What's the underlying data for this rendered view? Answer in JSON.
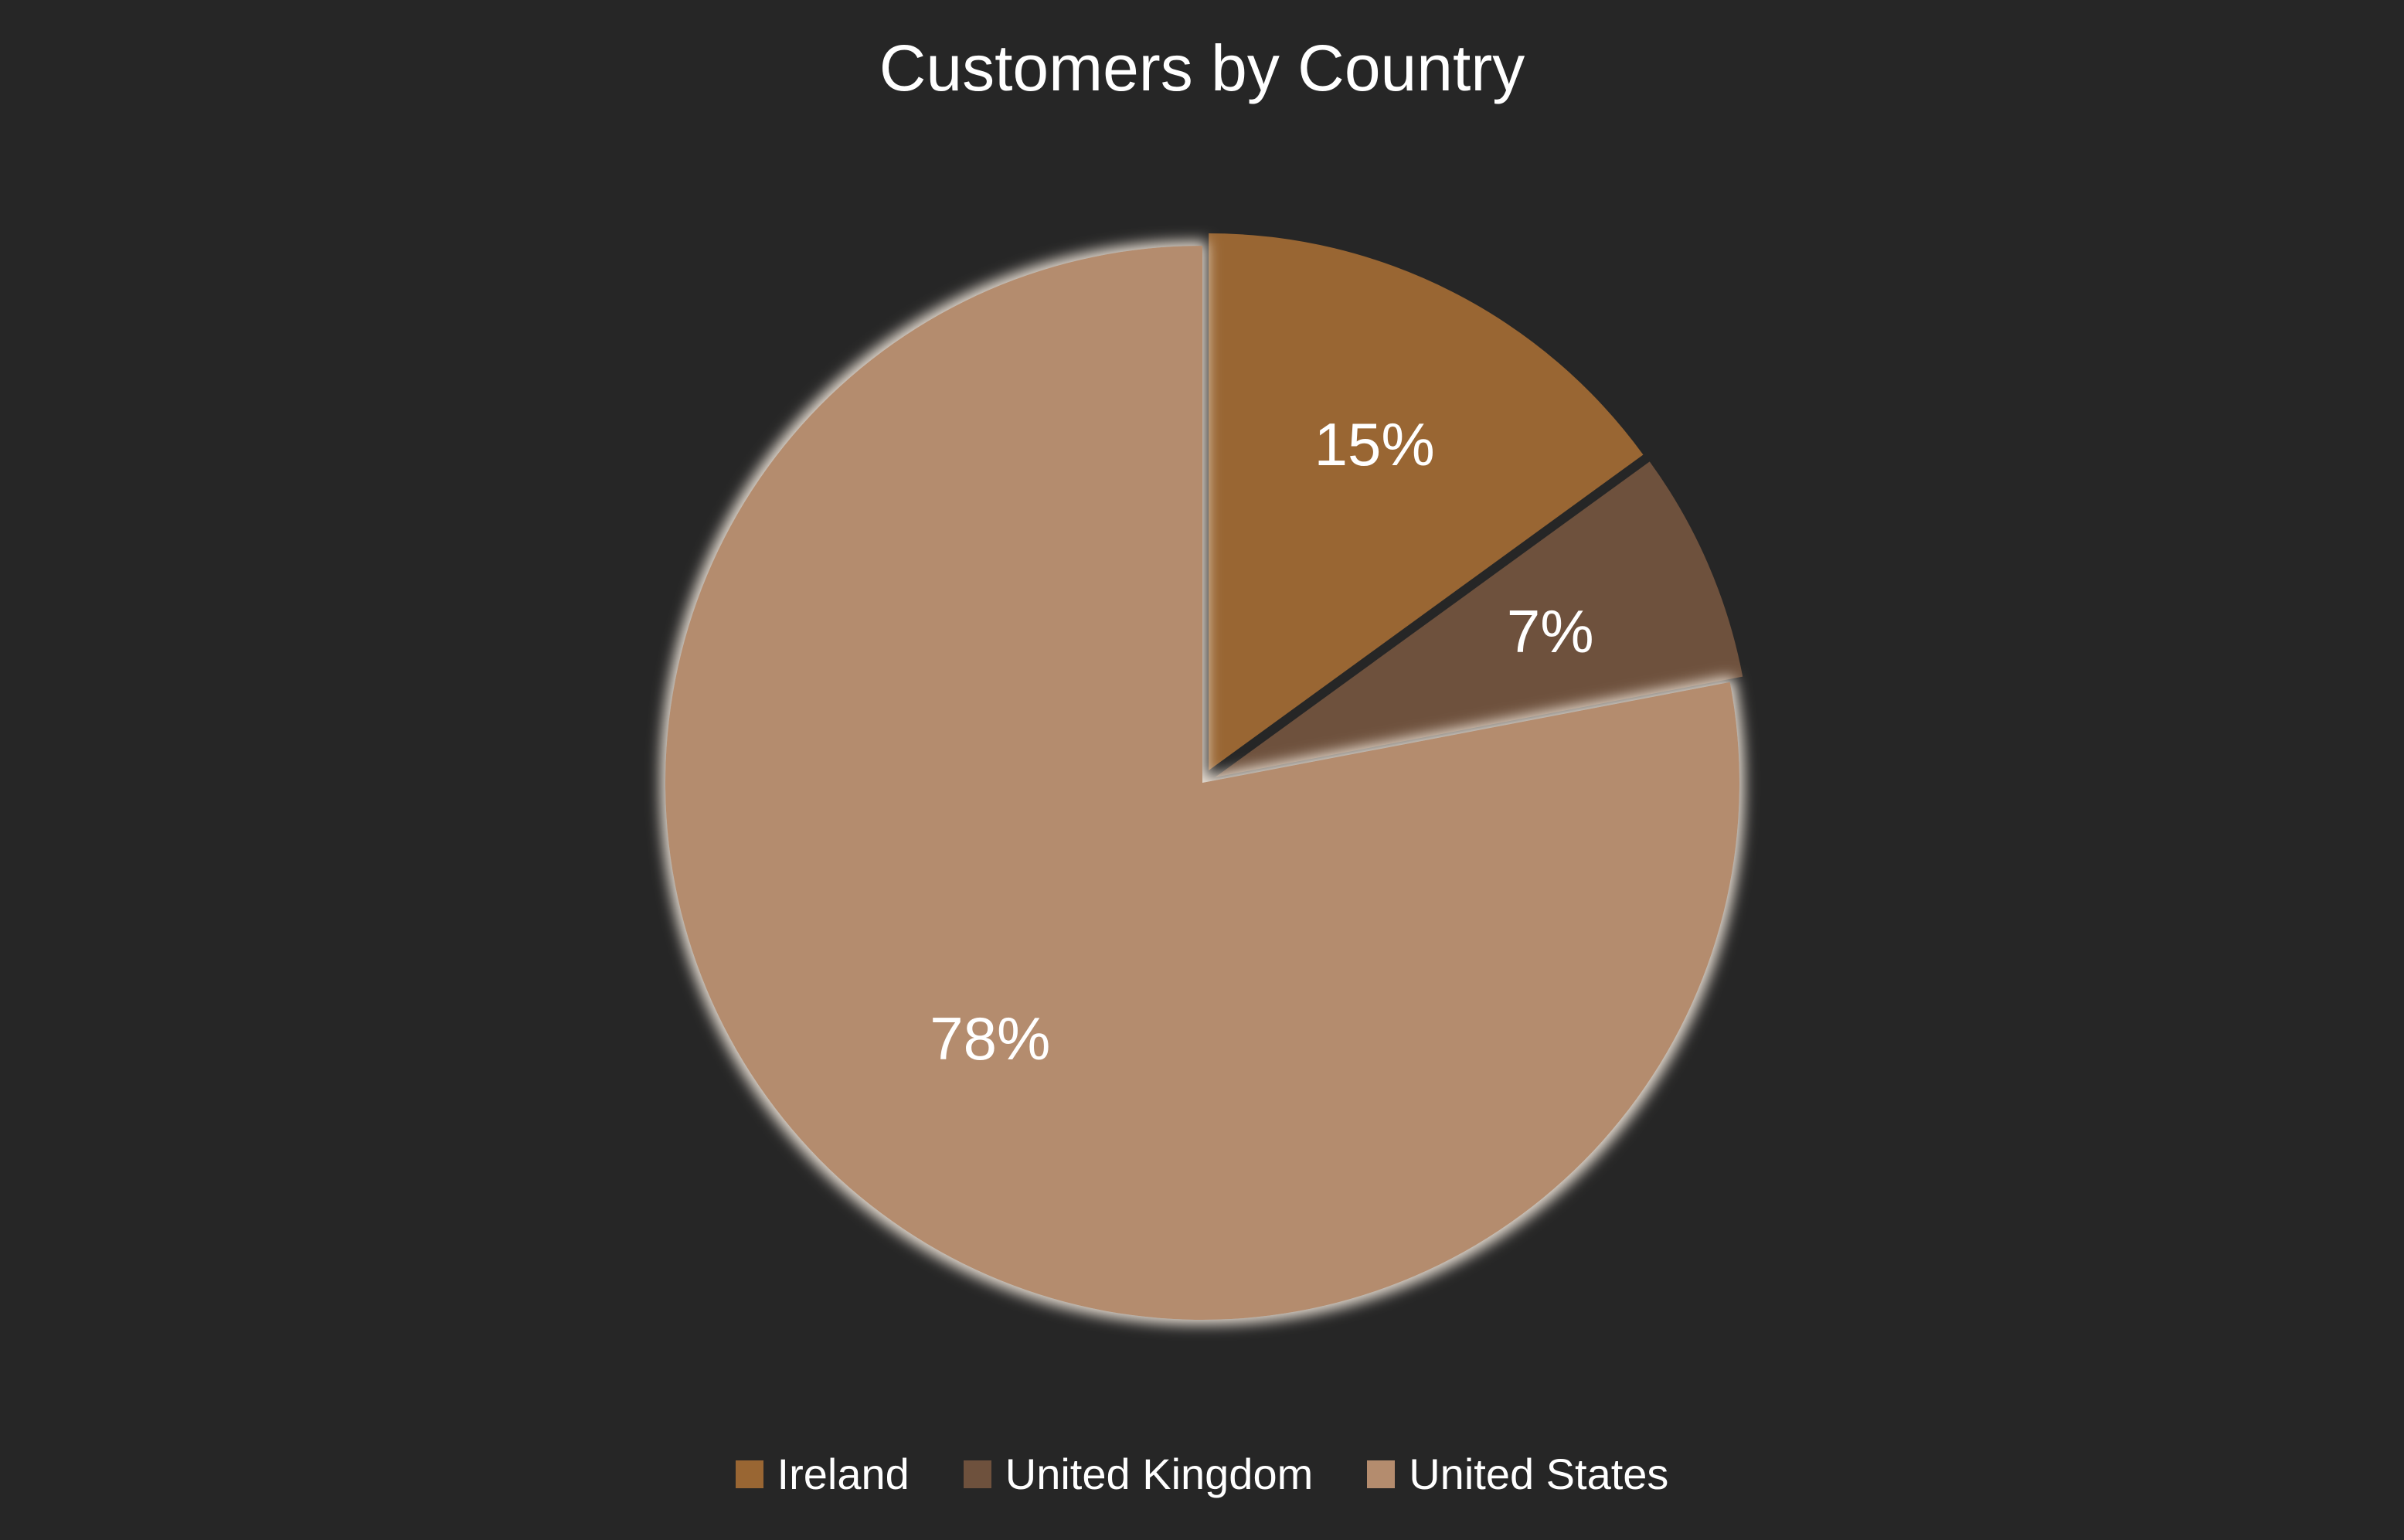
{
  "chart_data": {
    "type": "pie",
    "title": "Customers by Country",
    "categories": [
      "Ireland",
      "United Kingdom",
      "United States"
    ],
    "values": [
      15,
      7,
      78
    ],
    "labels": [
      "15%",
      "7%",
      "78%"
    ],
    "colors": [
      "#996633",
      "#6e513d",
      "#b48c6e"
    ],
    "exploded": [
      "United States"
    ],
    "legend_position": "bottom"
  },
  "background_color": "#262626"
}
